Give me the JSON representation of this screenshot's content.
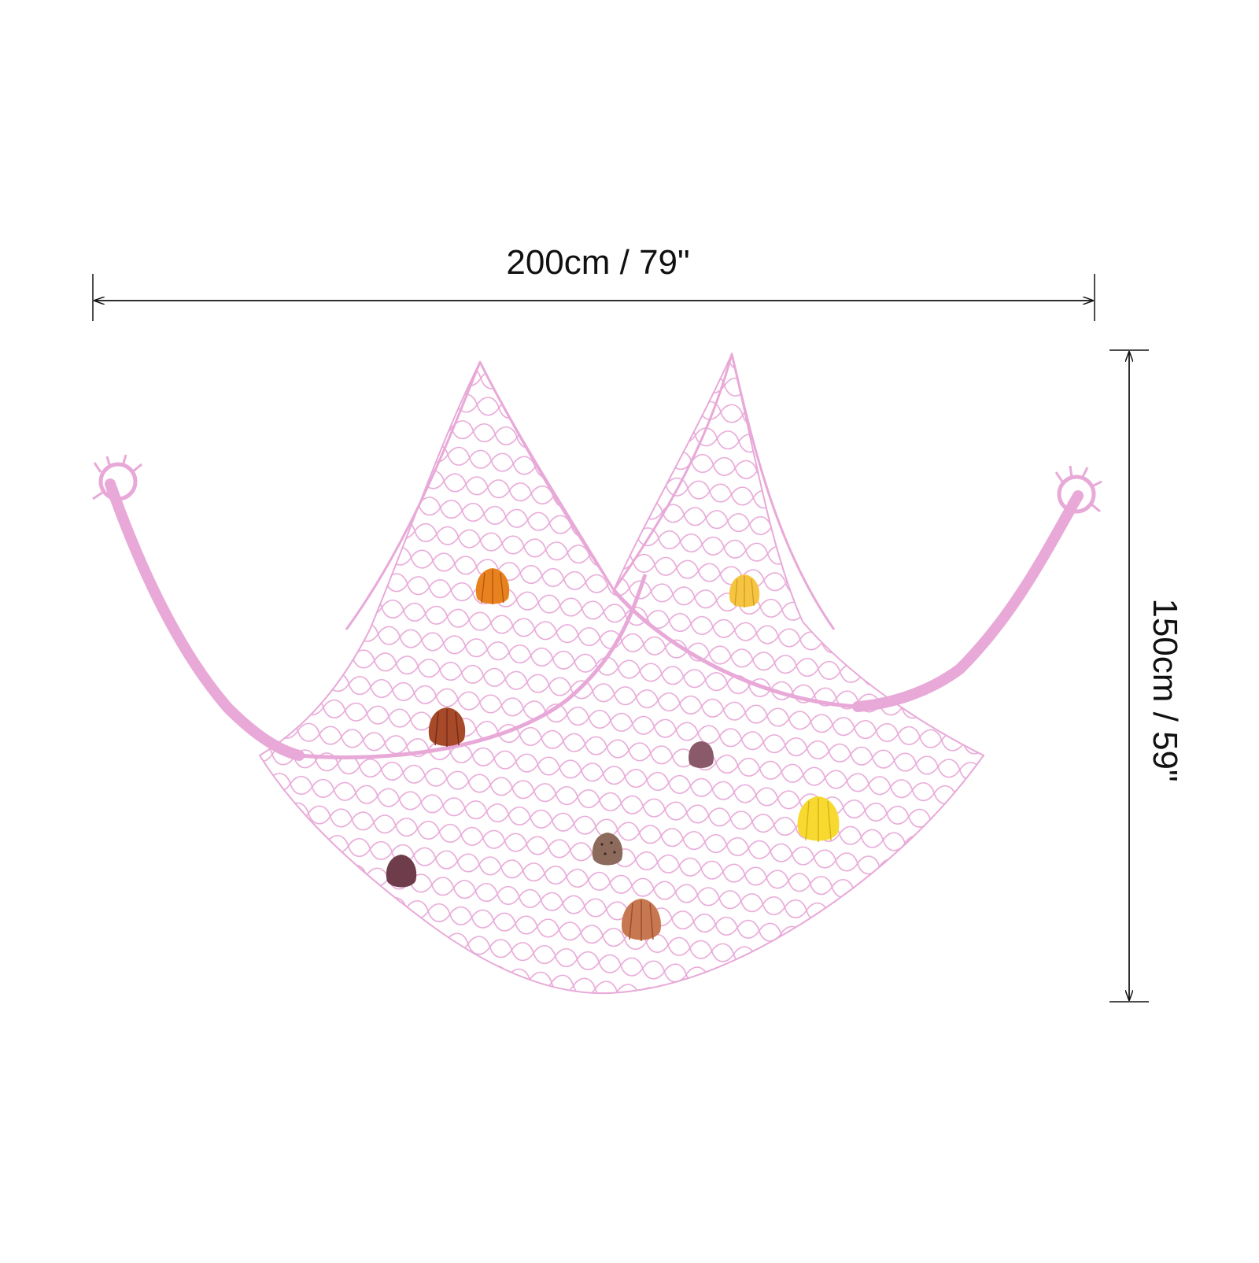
{
  "dimensions": {
    "width_label": "200cm / 79\"",
    "height_label": "150cm / 59\""
  },
  "product": {
    "net_color": "#e8a9d8",
    "shell_colors": {
      "orange": "#e8821e",
      "yellow": "#f5c542",
      "bright_yellow": "#f7d930",
      "rust": "#a64a2a",
      "mauve": "#8a5a6a",
      "plum": "#6e3c4a",
      "speckled": "#8c6a5c",
      "peach": "#c87850"
    }
  }
}
